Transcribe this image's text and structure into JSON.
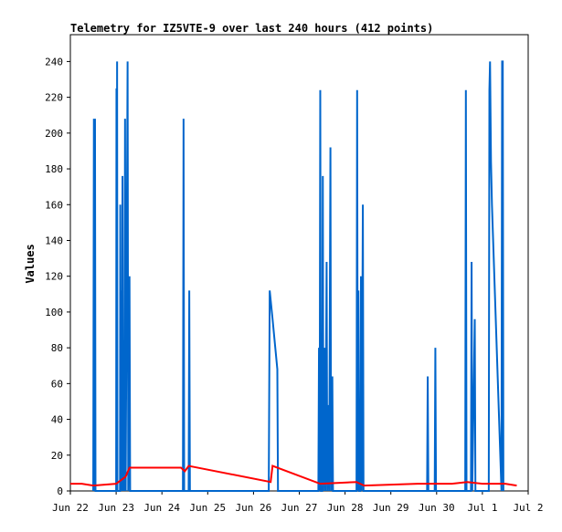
{
  "colors": {
    "background": "#ffffff",
    "axis": "#000000",
    "primary_series": "#0066cc",
    "secondary_series": "#ff0000"
  },
  "chart_data": {
    "type": "line",
    "title": "Telemetry for IZ5VTE-9 over last 240 hours (412 points)",
    "xlabel": "",
    "ylabel": "Values",
    "grid": false,
    "legend": "none",
    "x_domain": [
      "2023-06-22T00:00",
      "2023-07-02T00:00"
    ],
    "ylim": [
      0,
      255
    ],
    "x_ticks": [
      {
        "label": "Jun 22",
        "x": "2023-06-22T00:00"
      },
      {
        "label": "Jun 23",
        "x": "2023-06-23T00:00"
      },
      {
        "label": "Jun 24",
        "x": "2023-06-24T00:00"
      },
      {
        "label": "Jun 25",
        "x": "2023-06-25T00:00"
      },
      {
        "label": "Jun 26",
        "x": "2023-06-26T00:00"
      },
      {
        "label": "Jun 27",
        "x": "2023-06-27T00:00"
      },
      {
        "label": "Jun 28",
        "x": "2023-06-28T00:00"
      },
      {
        "label": "Jun 29",
        "x": "2023-06-29T00:00"
      },
      {
        "label": "Jun 30",
        "x": "2023-06-30T00:00"
      },
      {
        "label": "Jul 1",
        "x": "2023-07-01T00:00"
      },
      {
        "label": "Jul 2",
        "x": "2023-07-02T00:00"
      }
    ],
    "y_ticks": [
      0,
      20,
      40,
      60,
      80,
      100,
      120,
      140,
      160,
      180,
      200,
      220,
      240
    ],
    "series": [
      {
        "color": "#0066cc",
        "points": [
          [
            "2023-06-22T12:00",
            0
          ],
          [
            "2023-06-22T12:20",
            208
          ],
          [
            "2023-06-22T12:40",
            0
          ],
          [
            "2023-06-22T12:55",
            208
          ],
          [
            "2023-06-22T13:10",
            0
          ],
          [
            "2023-06-23T00:00",
            0
          ],
          [
            "2023-06-23T00:10",
            225
          ],
          [
            "2023-06-23T00:20",
            0
          ],
          [
            "2023-06-23T00:30",
            240
          ],
          [
            "2023-06-23T00:40",
            0
          ],
          [
            "2023-06-23T02:00",
            0
          ],
          [
            "2023-06-23T02:10",
            160
          ],
          [
            "2023-06-23T02:20",
            0
          ],
          [
            "2023-06-23T02:40",
            112
          ],
          [
            "2023-06-23T03:00",
            0
          ],
          [
            "2023-06-23T03:20",
            176
          ],
          [
            "2023-06-23T03:40",
            0
          ],
          [
            "2023-06-23T04:00",
            80
          ],
          [
            "2023-06-23T04:20",
            0
          ],
          [
            "2023-06-23T04:40",
            208
          ],
          [
            "2023-06-23T05:00",
            0
          ],
          [
            "2023-06-23T06:00",
            240
          ],
          [
            "2023-06-23T06:20",
            0
          ],
          [
            "2023-06-23T07:00",
            120
          ],
          [
            "2023-06-23T07:20",
            0
          ],
          [
            "2023-06-24T11:00",
            0
          ],
          [
            "2023-06-24T11:20",
            208
          ],
          [
            "2023-06-24T11:40",
            0
          ],
          [
            "2023-06-24T14:00",
            0
          ],
          [
            "2023-06-24T14:20",
            112
          ],
          [
            "2023-06-24T14:40",
            0
          ],
          [
            "2023-06-26T08:00",
            0
          ],
          [
            "2023-06-26T08:30",
            112
          ],
          [
            "2023-06-26T10:00",
            96
          ],
          [
            "2023-06-26T12:30",
            68
          ],
          [
            "2023-06-26T12:50",
            0
          ],
          [
            "2023-06-27T10:00",
            0
          ],
          [
            "2023-06-27T10:20",
            80
          ],
          [
            "2023-06-27T10:40",
            0
          ],
          [
            "2023-06-27T11:00",
            224
          ],
          [
            "2023-06-27T11:20",
            0
          ],
          [
            "2023-06-27T12:00",
            0
          ],
          [
            "2023-06-27T12:20",
            176
          ],
          [
            "2023-06-27T12:40",
            0
          ],
          [
            "2023-06-27T13:20",
            80
          ],
          [
            "2023-06-27T13:40",
            0
          ],
          [
            "2023-06-27T14:20",
            128
          ],
          [
            "2023-06-27T14:40",
            0
          ],
          [
            "2023-06-27T15:20",
            48
          ],
          [
            "2023-06-27T15:40",
            0
          ],
          [
            "2023-06-27T16:20",
            192
          ],
          [
            "2023-06-27T16:40",
            0
          ],
          [
            "2023-06-27T17:20",
            64
          ],
          [
            "2023-06-27T17:40",
            0
          ],
          [
            "2023-06-28T06:00",
            0
          ],
          [
            "2023-06-28T06:20",
            224
          ],
          [
            "2023-06-28T06:40",
            0
          ],
          [
            "2023-06-28T07:00",
            112
          ],
          [
            "2023-06-28T07:20",
            0
          ],
          [
            "2023-06-28T08:00",
            0
          ],
          [
            "2023-06-28T08:20",
            120
          ],
          [
            "2023-06-28T08:40",
            0
          ],
          [
            "2023-06-28T09:20",
            160
          ],
          [
            "2023-06-28T09:40",
            0
          ],
          [
            "2023-06-29T19:00",
            0
          ],
          [
            "2023-06-29T19:20",
            64
          ],
          [
            "2023-06-29T19:40",
            0
          ],
          [
            "2023-06-29T23:00",
            0
          ],
          [
            "2023-06-29T23:20",
            80
          ],
          [
            "2023-06-29T23:40",
            0
          ],
          [
            "2023-06-30T15:00",
            0
          ],
          [
            "2023-06-30T15:20",
            224
          ],
          [
            "2023-06-30T15:40",
            0
          ],
          [
            "2023-06-30T18:00",
            0
          ],
          [
            "2023-06-30T18:20",
            128
          ],
          [
            "2023-06-30T18:40",
            0
          ],
          [
            "2023-06-30T20:00",
            96
          ],
          [
            "2023-06-30T20:20",
            0
          ],
          [
            "2023-07-01T03:20",
            0
          ],
          [
            "2023-07-01T03:40",
            224
          ],
          [
            "2023-07-01T04:00",
            240
          ],
          [
            "2023-07-01T04:30",
            184
          ],
          [
            "2023-07-01T05:00",
            160
          ],
          [
            "2023-07-01T06:00",
            128
          ],
          [
            "2023-07-01T07:00",
            96
          ],
          [
            "2023-07-01T08:00",
            64
          ],
          [
            "2023-07-01T09:00",
            32
          ],
          [
            "2023-07-01T10:00",
            0
          ],
          [
            "2023-07-01T10:20",
            240
          ],
          [
            "2023-07-01T10:40",
            240
          ],
          [
            "2023-07-01T11:00",
            0
          ]
        ]
      },
      {
        "color": "#ff0000",
        "points": [
          [
            "2023-06-22T00:00",
            4
          ],
          [
            "2023-06-22T06:00",
            4
          ],
          [
            "2023-06-22T12:00",
            3
          ],
          [
            "2023-06-23T00:00",
            4
          ],
          [
            "2023-06-23T05:00",
            8
          ],
          [
            "2023-06-23T07:00",
            13
          ],
          [
            "2023-06-24T10:00",
            13
          ],
          [
            "2023-06-24T12:00",
            11
          ],
          [
            "2023-06-24T14:00",
            14
          ],
          [
            "2023-06-26T09:00",
            5
          ],
          [
            "2023-06-26T10:00",
            14
          ],
          [
            "2023-06-27T11:00",
            4
          ],
          [
            "2023-06-28T06:00",
            5
          ],
          [
            "2023-06-28T10:00",
            3
          ],
          [
            "2023-06-29T14:00",
            4
          ],
          [
            "2023-06-30T08:00",
            4
          ],
          [
            "2023-06-30T16:00",
            5
          ],
          [
            "2023-07-01T00:00",
            4
          ],
          [
            "2023-07-01T12:00",
            4
          ],
          [
            "2023-07-01T18:00",
            3
          ]
        ]
      }
    ]
  }
}
